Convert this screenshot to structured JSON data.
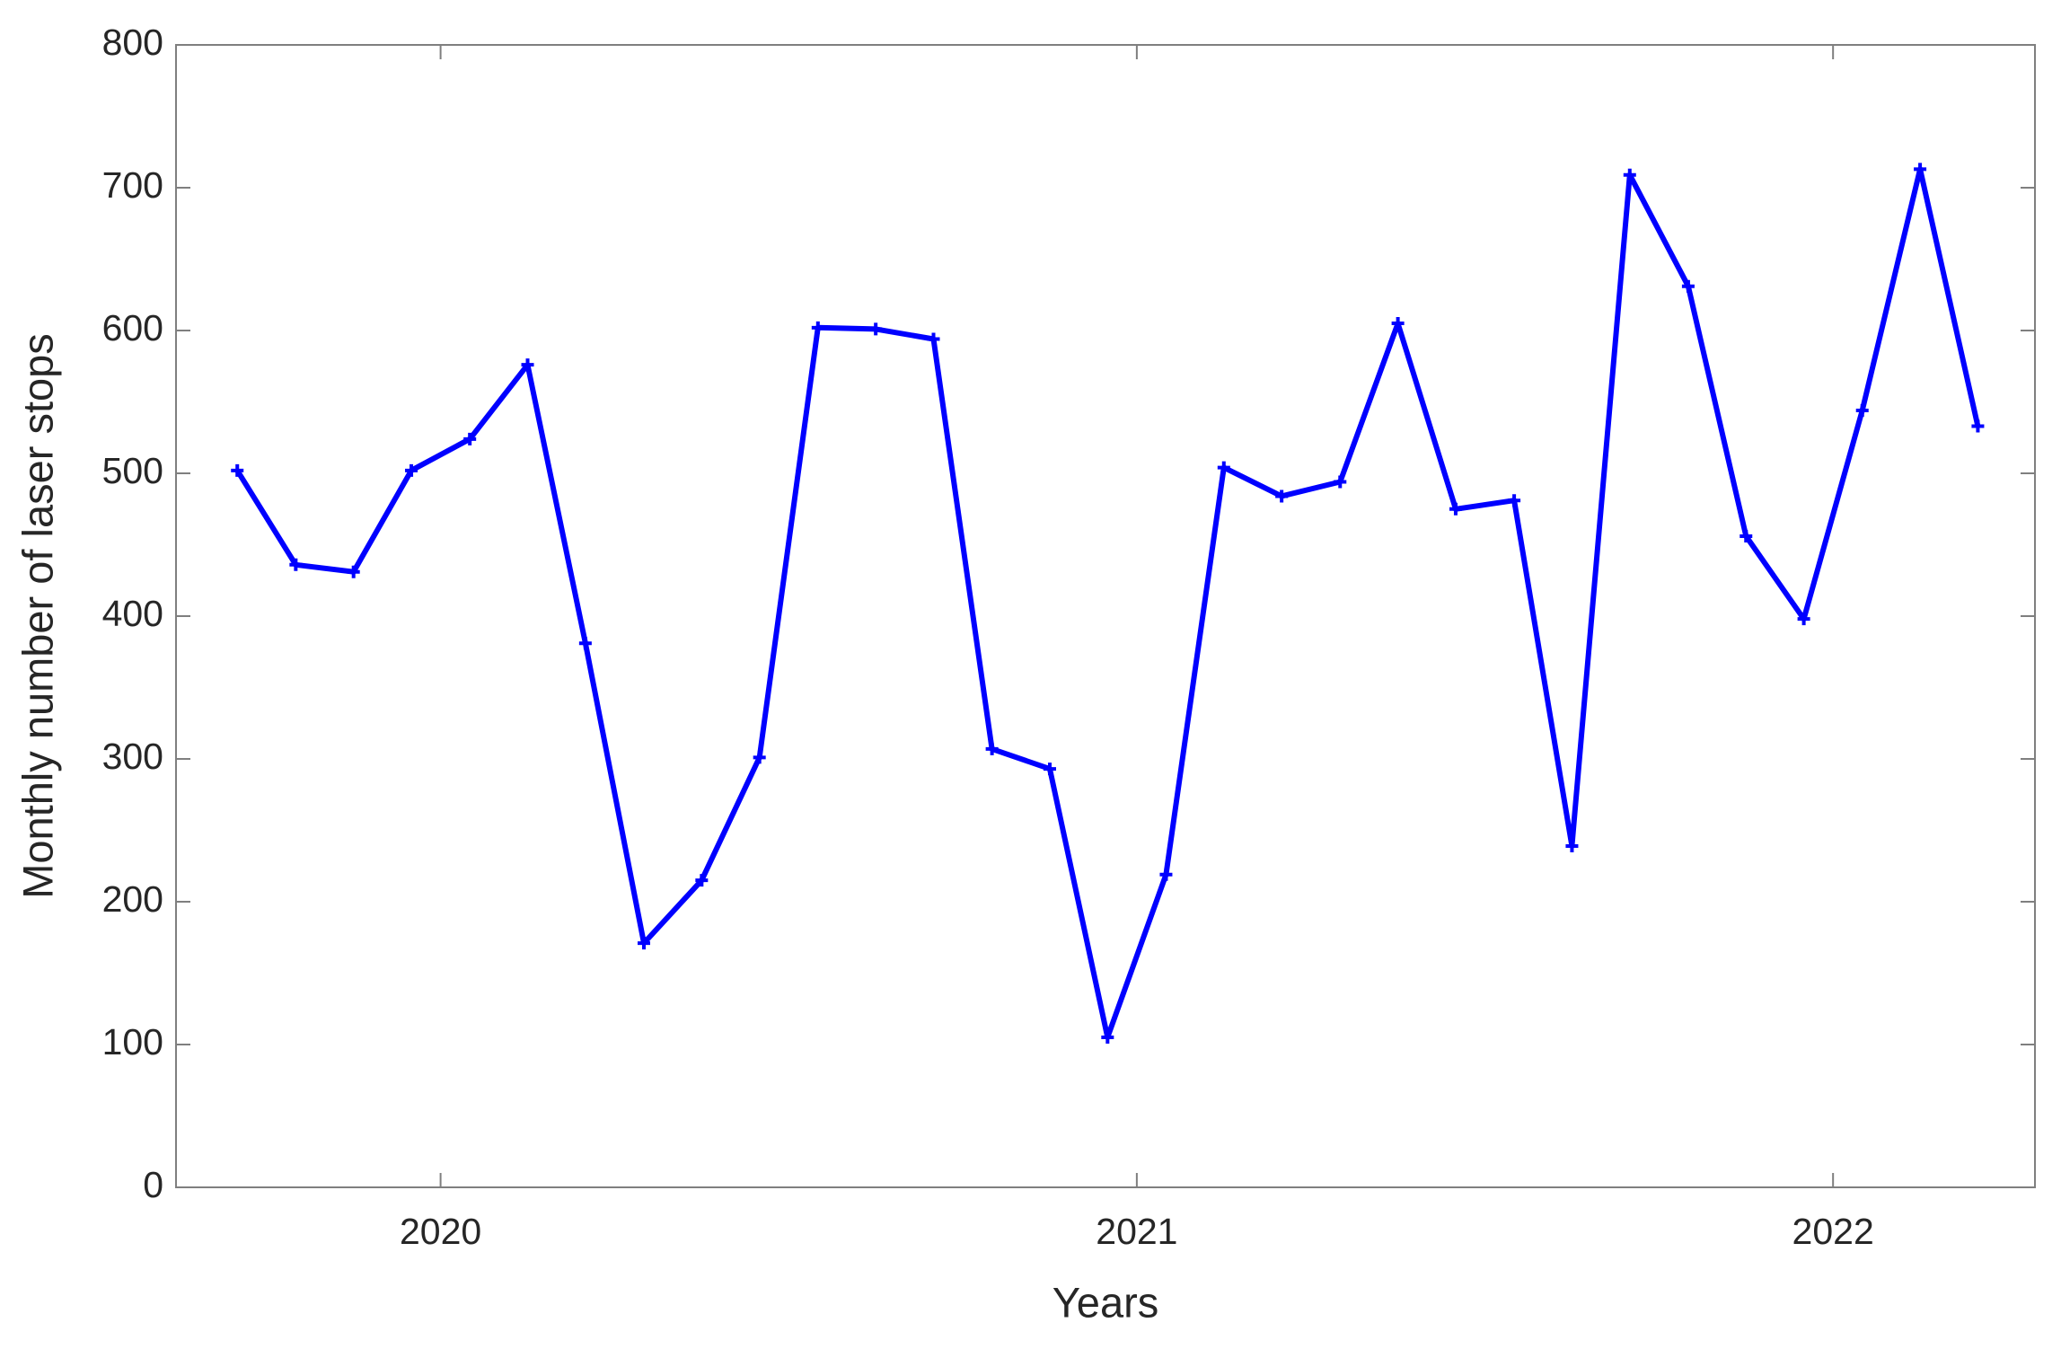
{
  "chart_data": {
    "type": "line",
    "xlabel": "Years",
    "ylabel": "Monthly number of laser stops",
    "x": [
      2019.708,
      2019.792,
      2019.875,
      2019.958,
      2020.042,
      2020.125,
      2020.208,
      2020.292,
      2020.375,
      2020.458,
      2020.542,
      2020.625,
      2020.708,
      2020.792,
      2020.875,
      2020.958,
      2021.042,
      2021.125,
      2021.208,
      2021.292,
      2021.375,
      2021.458,
      2021.542,
      2021.625,
      2021.708,
      2021.792,
      2021.875,
      2021.958,
      2022.042,
      2022.125,
      2022.208
    ],
    "values": [
      502,
      436,
      431,
      502,
      524,
      576,
      381,
      171,
      215,
      301,
      602,
      601,
      594,
      307,
      293,
      105,
      219,
      504,
      484,
      494,
      605,
      475,
      481,
      239,
      709,
      631,
      456,
      398,
      544,
      713,
      533
    ],
    "color": "#0000ff",
    "xlim": [
      2019.62,
      2022.29
    ],
    "xticks": [
      2020,
      2021,
      2022
    ],
    "ylim": [
      0,
      800
    ],
    "yticks": [
      0,
      100,
      200,
      300,
      400,
      500,
      600,
      700,
      800
    ],
    "grid": false
  }
}
